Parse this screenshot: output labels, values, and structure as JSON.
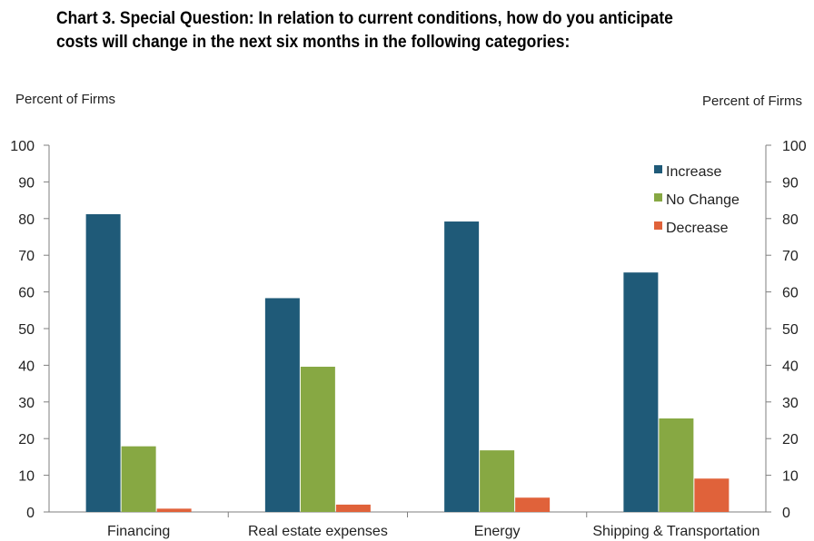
{
  "chart_data": {
    "type": "bar",
    "title_lines": [
      "Chart 3. Special Question: In relation to current conditions, how do you anticipate",
      "costs will change in the next six months in the following categories:"
    ],
    "ylabel_left": "Percent of Firms",
    "ylabel_right": "Percent of Firms",
    "xlabel": "",
    "ylim": [
      0,
      100
    ],
    "yticks": [
      0,
      10,
      20,
      30,
      40,
      50,
      60,
      70,
      80,
      90,
      100
    ],
    "categories": [
      "Financing",
      "Real estate expenses",
      "Energy",
      "Shipping & Transportation"
    ],
    "series": [
      {
        "name": "Increase",
        "color": "#1f5a78",
        "values": [
          81.2,
          58.3,
          79.2,
          65.3
        ]
      },
      {
        "name": "No Change",
        "color": "#87a843",
        "values": [
          17.9,
          39.6,
          16.8,
          25.5
        ]
      },
      {
        "name": "Decrease",
        "color": "#e0623a",
        "values": [
          0.9,
          2.0,
          3.9,
          9.1
        ]
      }
    ],
    "legend_position": "top-right",
    "grid": false
  }
}
